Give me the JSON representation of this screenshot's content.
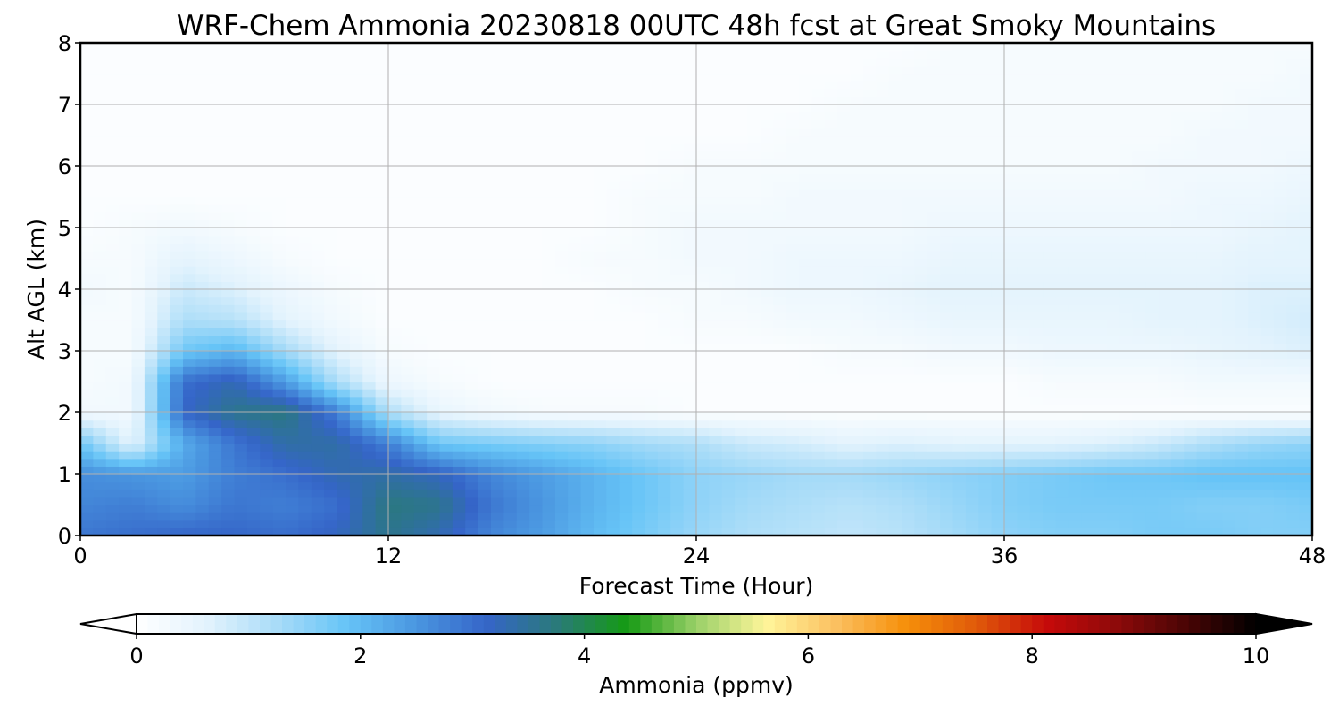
{
  "chart_data": {
    "type": "heatmap",
    "title": "WRF-Chem Ammonia  20230818 00UTC 48h fcst at Great Smoky Mountains",
    "xlabel": "Forecast Time (Hour)",
    "ylabel": "Alt AGL (km)",
    "xlim": [
      0,
      48
    ],
    "ylim": [
      0,
      8
    ],
    "x_ticks": [
      "0",
      "12",
      "24",
      "36",
      "48"
    ],
    "y_ticks": [
      "0",
      "1",
      "2",
      "3",
      "4",
      "5",
      "6",
      "7",
      "8"
    ],
    "grid": true,
    "colorbar": {
      "label": "Ammonia  (ppmv)",
      "range": [
        0,
        10
      ],
      "ticks": [
        "0",
        "2",
        "4",
        "6",
        "8",
        "10"
      ],
      "extend": "both",
      "colors": [
        "#ffffff",
        "#e3f3fd",
        "#a9dcf8",
        "#66c4f7",
        "#4a96e0",
        "#3565c8",
        "#2a7a7a",
        "#159a14",
        "#9ad068",
        "#fff59a",
        "#fbc060",
        "#f68f0a",
        "#e05a0a",
        "#c60a0a",
        "#8e0a0a",
        "#4a0505",
        "#000000"
      ]
    },
    "hours": [
      0,
      2,
      4,
      6,
      8,
      10,
      12,
      14,
      16,
      18,
      20,
      22,
      24,
      26,
      28,
      30,
      32,
      34,
      36,
      38,
      40,
      42,
      44,
      46,
      48
    ],
    "altitudes_km": [
      0.0,
      0.5,
      1.0,
      1.5,
      2.0,
      2.5,
      3.0,
      3.5,
      4.0,
      4.5,
      5.0,
      5.5,
      6.0,
      6.5,
      7.0,
      7.5,
      8.0
    ],
    "values_ppmv": [
      [
        2.9,
        3.0,
        3.1,
        3.1,
        3.0,
        3.2,
        3.6,
        3.3,
        2.7,
        2.4,
        2.0,
        1.7,
        1.4,
        1.2,
        1.1,
        1.0,
        1.1,
        1.3,
        1.5,
        1.6,
        1.6,
        1.7,
        1.7,
        1.6,
        1.6
      ],
      [
        2.7,
        2.8,
        2.6,
        2.9,
        2.8,
        3.0,
        3.7,
        3.6,
        2.9,
        2.5,
        2.1,
        1.8,
        1.5,
        1.3,
        1.2,
        1.1,
        1.2,
        1.4,
        1.6,
        1.7,
        1.7,
        1.7,
        1.6,
        1.6,
        1.7
      ],
      [
        2.6,
        2.5,
        2.4,
        2.8,
        3.0,
        3.3,
        3.4,
        3.2,
        2.7,
        2.4,
        2.1,
        1.8,
        1.5,
        1.4,
        1.3,
        1.3,
        1.4,
        1.5,
        1.6,
        1.7,
        1.8,
        1.8,
        1.9,
        1.9,
        1.9
      ],
      [
        1.8,
        0.6,
        2.2,
        2.9,
        3.4,
        3.4,
        2.8,
        1.8,
        1.7,
        1.6,
        1.5,
        1.3,
        1.2,
        0.9,
        0.8,
        0.6,
        0.7,
        0.6,
        0.6,
        0.6,
        0.7,
        0.9,
        1.2,
        1.4,
        1.5
      ],
      [
        0.3,
        0.3,
        3.1,
        3.6,
        3.7,
        2.8,
        1.2,
        0.5,
        0.3,
        0.2,
        0.2,
        0.2,
        0.1,
        0.1,
        0.1,
        0.1,
        0.1,
        0.1,
        0.1,
        0.1,
        0.1,
        0.1,
        0.1,
        0.1,
        0.1
      ],
      [
        0.2,
        0.3,
        3.0,
        3.3,
        2.4,
        1.2,
        0.4,
        0.2,
        0.1,
        0.1,
        0.1,
        0.1,
        0.1,
        0.1,
        0.1,
        0.1,
        0.1,
        0.1,
        0.1,
        0.2,
        0.2,
        0.2,
        0.3,
        0.3,
        0.3
      ],
      [
        0.2,
        0.2,
        1.8,
        2.1,
        1.3,
        0.6,
        0.2,
        0.1,
        0.1,
        0.1,
        0.1,
        0.1,
        0.1,
        0.1,
        0.1,
        0.2,
        0.2,
        0.3,
        0.3,
        0.4,
        0.4,
        0.4,
        0.5,
        0.6,
        0.7
      ],
      [
        0.2,
        0.2,
        1.2,
        1.1,
        0.6,
        0.3,
        0.1,
        0.1,
        0.1,
        0.1,
        0.1,
        0.1,
        0.2,
        0.2,
        0.3,
        0.3,
        0.4,
        0.5,
        0.5,
        0.5,
        0.5,
        0.6,
        0.6,
        0.7,
        0.8
      ],
      [
        0.3,
        0.2,
        0.9,
        0.7,
        0.4,
        0.2,
        0.1,
        0.1,
        0.1,
        0.1,
        0.1,
        0.2,
        0.2,
        0.3,
        0.4,
        0.4,
        0.5,
        0.6,
        0.6,
        0.6,
        0.6,
        0.6,
        0.6,
        0.7,
        0.7
      ],
      [
        0.2,
        0.2,
        0.6,
        0.4,
        0.2,
        0.1,
        0.1,
        0.1,
        0.1,
        0.1,
        0.2,
        0.2,
        0.3,
        0.3,
        0.4,
        0.4,
        0.4,
        0.5,
        0.5,
        0.5,
        0.5,
        0.5,
        0.5,
        0.6,
        0.6
      ],
      [
        0.1,
        0.2,
        0.3,
        0.2,
        0.1,
        0.1,
        0.1,
        0.1,
        0.1,
        0.1,
        0.1,
        0.2,
        0.3,
        0.3,
        0.3,
        0.3,
        0.3,
        0.4,
        0.4,
        0.4,
        0.4,
        0.4,
        0.4,
        0.5,
        0.6
      ],
      [
        0.1,
        0.1,
        0.1,
        0.1,
        0.1,
        0.1,
        0.1,
        0.1,
        0.1,
        0.1,
        0.1,
        0.2,
        0.2,
        0.2,
        0.3,
        0.3,
        0.3,
        0.3,
        0.3,
        0.3,
        0.3,
        0.3,
        0.4,
        0.4,
        0.5
      ],
      [
        0.1,
        0.1,
        0.1,
        0.1,
        0.1,
        0.1,
        0.1,
        0.1,
        0.1,
        0.1,
        0.1,
        0.1,
        0.2,
        0.2,
        0.2,
        0.2,
        0.2,
        0.2,
        0.2,
        0.2,
        0.2,
        0.3,
        0.3,
        0.3,
        0.4
      ],
      [
        0.1,
        0.1,
        0.1,
        0.1,
        0.1,
        0.1,
        0.1,
        0.1,
        0.1,
        0.1,
        0.1,
        0.1,
        0.1,
        0.1,
        0.2,
        0.2,
        0.2,
        0.2,
        0.2,
        0.2,
        0.2,
        0.2,
        0.3,
        0.3,
        0.3
      ],
      [
        0.1,
        0.1,
        0.1,
        0.1,
        0.1,
        0.1,
        0.1,
        0.1,
        0.1,
        0.1,
        0.1,
        0.1,
        0.1,
        0.1,
        0.1,
        0.2,
        0.2,
        0.2,
        0.2,
        0.2,
        0.2,
        0.2,
        0.2,
        0.3,
        0.3
      ],
      [
        0.1,
        0.1,
        0.1,
        0.1,
        0.1,
        0.1,
        0.1,
        0.1,
        0.1,
        0.1,
        0.1,
        0.1,
        0.1,
        0.1,
        0.1,
        0.1,
        0.2,
        0.2,
        0.2,
        0.2,
        0.2,
        0.2,
        0.2,
        0.2,
        0.3
      ],
      [
        0.1,
        0.1,
        0.1,
        0.1,
        0.1,
        0.1,
        0.1,
        0.1,
        0.1,
        0.1,
        0.1,
        0.1,
        0.1,
        0.1,
        0.1,
        0.1,
        0.1,
        0.2,
        0.2,
        0.2,
        0.2,
        0.2,
        0.2,
        0.2,
        0.2
      ]
    ]
  }
}
